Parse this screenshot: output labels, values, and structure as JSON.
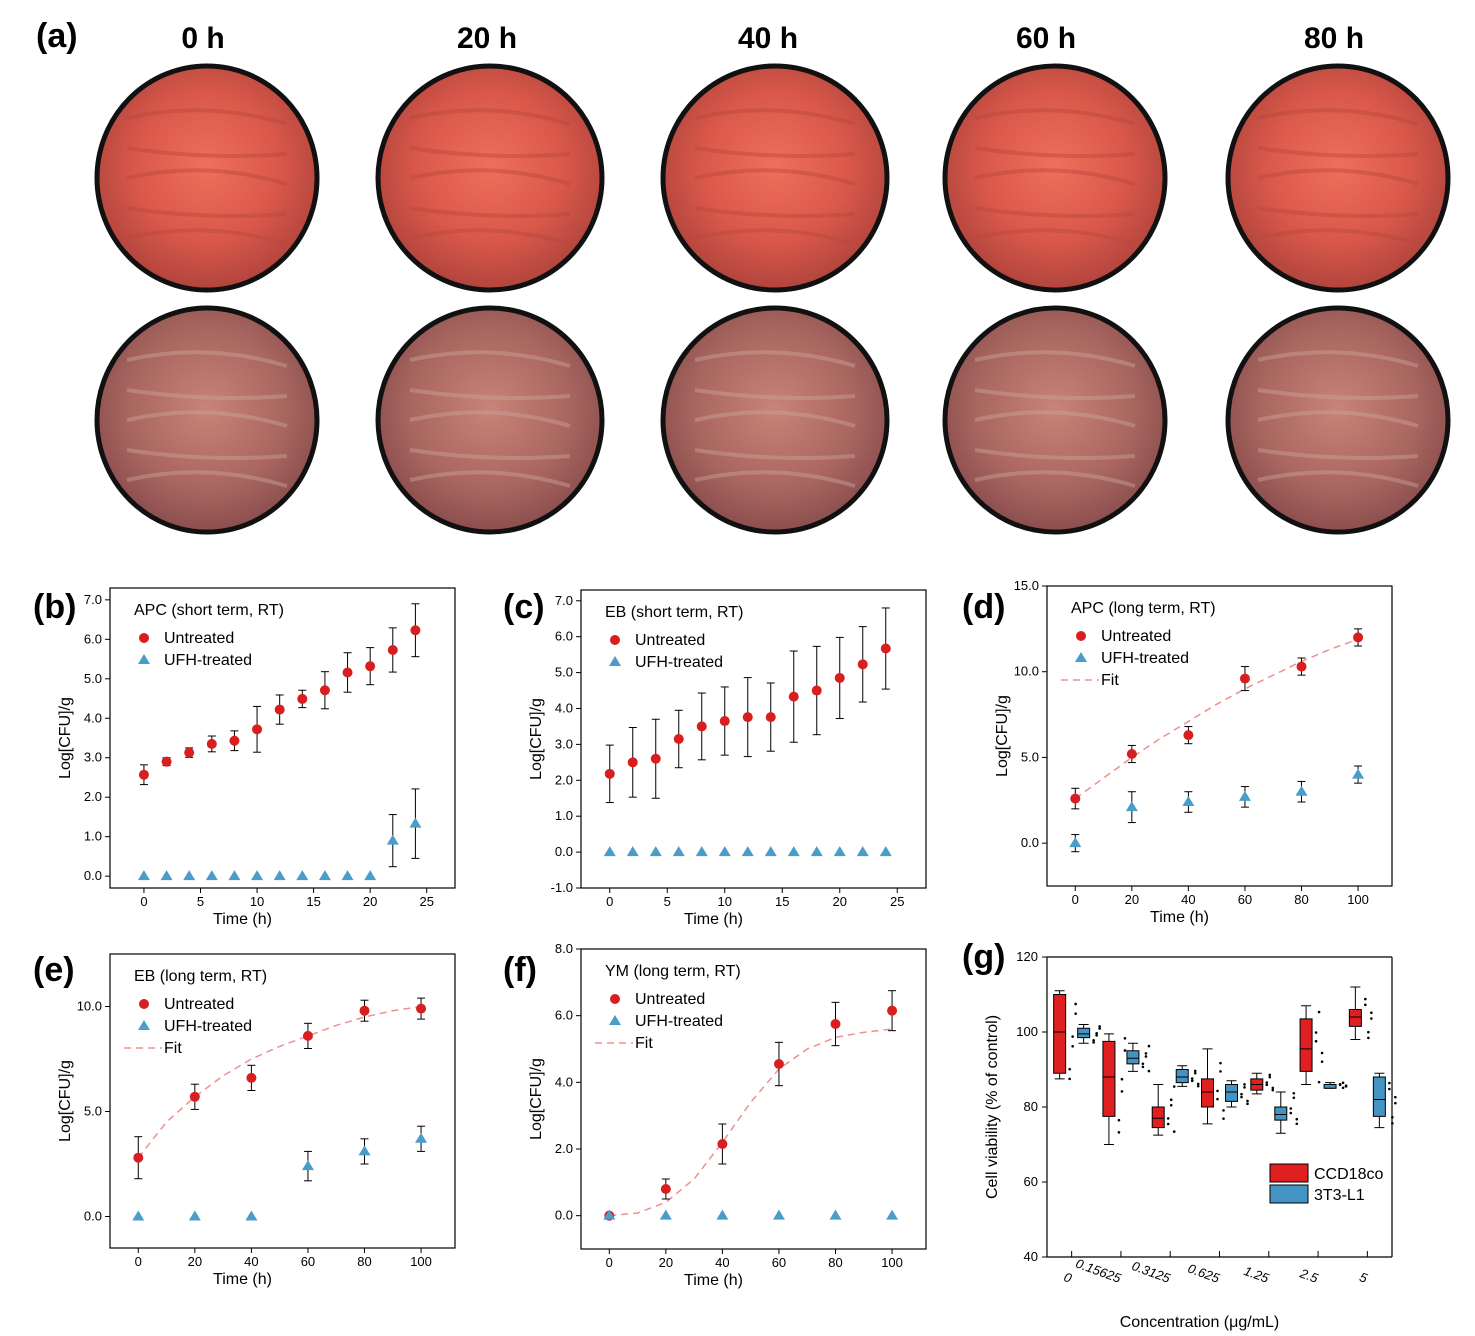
{
  "panel_a": {
    "label": "(a)",
    "time_labels": [
      "0 h",
      "20 h",
      "40 h",
      "60 h",
      "80 h"
    ]
  },
  "colors": {
    "untreated": "#d81e1e",
    "ufh": "#4a9cc9",
    "fit": "#f08f8f",
    "box_ccd": "#e02020",
    "box_3t3": "#4393c3"
  },
  "chart_data": [
    {
      "id": "b",
      "label": "(b)",
      "type": "scatter",
      "title": "APC (short term, RT)",
      "xlabel": "Time (h)",
      "ylabel": "Log[CFU]/g",
      "xlim": [
        -3,
        27.5
      ],
      "ylim": [
        -0.3,
        7.3
      ],
      "xticks": [
        0,
        5,
        10,
        15,
        20,
        25
      ],
      "xtick_labels": [
        "0",
        "5",
        "10",
        "15",
        "20",
        "25"
      ],
      "yticks": [
        0,
        1,
        2,
        3,
        4,
        5,
        6,
        7
      ],
      "ytick_labels": [
        "0.0",
        "1.0",
        "2.0",
        "3.0",
        "4.0",
        "5.0",
        "6.0",
        "7.0"
      ],
      "legend": [
        "Untreated",
        "UFH-treated"
      ],
      "series": [
        {
          "name": "Untreated",
          "marker": "circle",
          "x": [
            0,
            2,
            4,
            6,
            8,
            10,
            12,
            14,
            16,
            18,
            20,
            22,
            24
          ],
          "y": [
            2.57,
            2.9,
            3.13,
            3.35,
            3.43,
            3.72,
            4.22,
            4.49,
            4.71,
            5.16,
            5.32,
            5.73,
            6.23
          ],
          "err": [
            0.25,
            0.1,
            0.12,
            0.2,
            0.25,
            0.58,
            0.37,
            0.22,
            0.47,
            0.5,
            0.47,
            0.56,
            0.67
          ]
        },
        {
          "name": "UFH-treated",
          "marker": "triangle",
          "x": [
            0,
            2,
            4,
            6,
            8,
            10,
            12,
            14,
            16,
            18,
            20,
            22,
            24
          ],
          "y": [
            0,
            0,
            0,
            0,
            0,
            0,
            0,
            0,
            0,
            0,
            0,
            0.9,
            1.33
          ],
          "err": [
            0,
            0,
            0,
            0,
            0,
            0,
            0,
            0,
            0,
            0,
            0,
            0.66,
            0.88
          ]
        }
      ]
    },
    {
      "id": "c",
      "label": "(c)",
      "type": "scatter",
      "title": "EB (short term, RT)",
      "xlabel": "Time (h)",
      "ylabel": "Log[CFU]/g",
      "xlim": [
        -2.5,
        27.5
      ],
      "ylim": [
        -1,
        7.3
      ],
      "xticks": [
        0,
        5,
        10,
        15,
        20,
        25
      ],
      "xtick_labels": [
        "0",
        "5",
        "10",
        "15",
        "20",
        "25"
      ],
      "yticks": [
        -1,
        0,
        1,
        2,
        3,
        4,
        5,
        6,
        7
      ],
      "ytick_labels": [
        "-1.0",
        "0.0",
        "1.0",
        "2.0",
        "3.0",
        "4.0",
        "5.0",
        "6.0",
        "7.0"
      ],
      "legend": [
        "Untreated",
        "UFH-treated"
      ],
      "series": [
        {
          "name": "Untreated",
          "marker": "circle",
          "x": [
            0,
            2,
            4,
            6,
            8,
            10,
            12,
            14,
            16,
            18,
            20,
            22,
            24
          ],
          "y": [
            2.18,
            2.5,
            2.6,
            3.15,
            3.5,
            3.65,
            3.76,
            3.76,
            4.33,
            4.5,
            4.85,
            5.23,
            5.67
          ],
          "err": [
            0.8,
            0.97,
            1.1,
            0.8,
            0.93,
            0.95,
            1.1,
            0.95,
            1.27,
            1.23,
            1.13,
            1.05,
            1.13
          ]
        },
        {
          "name": "UFH-treated",
          "marker": "triangle",
          "x": [
            0,
            2,
            4,
            6,
            8,
            10,
            12,
            14,
            16,
            18,
            20,
            22,
            24
          ],
          "y": [
            0,
            0,
            0,
            0,
            0,
            0,
            0,
            0,
            0,
            0,
            0,
            0,
            0
          ],
          "err": [
            0,
            0,
            0,
            0,
            0,
            0,
            0,
            0,
            0,
            0,
            0,
            0,
            0
          ]
        }
      ]
    },
    {
      "id": "d",
      "label": "(d)",
      "type": "scatter",
      "title": "APC (long term, RT)",
      "xlabel": "Time (h)",
      "ylabel": "Log[CFU]/g",
      "xlim": [
        -10,
        112
      ],
      "ylim": [
        -2.5,
        15
      ],
      "xticks": [
        0,
        20,
        40,
        60,
        80,
        100
      ],
      "xtick_labels": [
        "0",
        "20",
        "40",
        "60",
        "80",
        "100"
      ],
      "yticks": [
        0,
        5,
        10,
        15
      ],
      "ytick_labels": [
        "0.0",
        "5.0",
        "10.0",
        "15.0"
      ],
      "legend": [
        "Untreated",
        "UFH-treated",
        "Fit"
      ],
      "series": [
        {
          "name": "Untreated",
          "marker": "circle",
          "x": [
            0,
            20,
            40,
            60,
            80,
            100
          ],
          "y": [
            2.6,
            5.2,
            6.3,
            9.6,
            10.3,
            12.0
          ],
          "err": [
            0.6,
            0.5,
            0.5,
            0.7,
            0.5,
            0.5
          ]
        },
        {
          "name": "UFH-treated",
          "marker": "triangle",
          "x": [
            0,
            20,
            40,
            60,
            80,
            100
          ],
          "y": [
            0,
            2.1,
            2.4,
            2.7,
            3.0,
            4.0
          ],
          "err": [
            0.5,
            0.9,
            0.6,
            0.6,
            0.6,
            0.5
          ]
        },
        {
          "name": "Fit",
          "line": "dashed",
          "x": [
            0,
            10,
            20,
            30,
            40,
            50,
            60,
            70,
            80,
            90,
            100
          ],
          "y": [
            2.6,
            3.8,
            5.0,
            6.1,
            7.1,
            8.1,
            9.0,
            9.8,
            10.6,
            11.3,
            11.9
          ]
        }
      ]
    },
    {
      "id": "e",
      "label": "(e)",
      "type": "scatter",
      "title": "EB (long term, RT)",
      "xlabel": "Time (h)",
      "ylabel": "Log[CFU]/g",
      "xlim": [
        -10,
        112
      ],
      "ylim": [
        -1.5,
        12.5
      ],
      "xticks": [
        0,
        20,
        40,
        60,
        80,
        100
      ],
      "xtick_labels": [
        "0",
        "20",
        "40",
        "60",
        "80",
        "100"
      ],
      "yticks": [
        0,
        5,
        10
      ],
      "ytick_labels": [
        "0.0",
        "5.0",
        "10.0"
      ],
      "legend": [
        "Untreated",
        "UFH-treated",
        "Fit"
      ],
      "series": [
        {
          "name": "Untreated",
          "marker": "circle",
          "x": [
            0,
            20,
            40,
            60,
            80,
            100
          ],
          "y": [
            2.8,
            5.7,
            6.6,
            8.6,
            9.8,
            9.9
          ],
          "err": [
            1.0,
            0.6,
            0.6,
            0.6,
            0.5,
            0.5
          ]
        },
        {
          "name": "UFH-treated",
          "marker": "triangle",
          "x": [
            0,
            20,
            40,
            60,
            80,
            100
          ],
          "y": [
            0,
            0,
            0,
            2.4,
            3.1,
            3.7
          ],
          "err": [
            0,
            0,
            0,
            0.7,
            0.6,
            0.6
          ]
        },
        {
          "name": "Fit",
          "line": "dashed",
          "x": [
            0,
            10,
            20,
            30,
            40,
            50,
            60,
            70,
            80,
            90,
            100
          ],
          "y": [
            2.8,
            4.5,
            5.7,
            6.7,
            7.5,
            8.1,
            8.6,
            9.1,
            9.5,
            9.8,
            10.0
          ]
        }
      ]
    },
    {
      "id": "f",
      "label": "(f)",
      "type": "scatter",
      "title": "YM (long term, RT)",
      "xlabel": "Time (h)",
      "ylabel": "Log[CFU]/g",
      "xlim": [
        -10,
        112
      ],
      "ylim": [
        -1,
        8
      ],
      "xticks": [
        0,
        20,
        40,
        60,
        80,
        100
      ],
      "xtick_labels": [
        "0",
        "20",
        "40",
        "60",
        "80",
        "100"
      ],
      "yticks": [
        0,
        2,
        4,
        6,
        8
      ],
      "ytick_labels": [
        "0.0",
        "2.0",
        "4.0",
        "6.0",
        "8.0"
      ],
      "legend": [
        "Untreated",
        "UFH-treated",
        "Fit"
      ],
      "series": [
        {
          "name": "Untreated",
          "marker": "circle",
          "x": [
            0,
            20,
            40,
            60,
            80,
            100
          ],
          "y": [
            0,
            0.8,
            2.15,
            4.55,
            5.75,
            6.15
          ],
          "err": [
            0,
            0.3,
            0.6,
            0.65,
            0.65,
            0.6
          ]
        },
        {
          "name": "UFH-treated",
          "marker": "triangle",
          "x": [
            0,
            20,
            40,
            60,
            80,
            100
          ],
          "y": [
            0,
            0,
            0,
            0,
            0,
            0
          ],
          "err": [
            0,
            0,
            0,
            0,
            0,
            0
          ]
        },
        {
          "name": "Fit",
          "line": "dashed",
          "x": [
            0,
            10,
            20,
            30,
            40,
            50,
            60,
            70,
            80,
            90,
            100
          ],
          "y": [
            0,
            0.08,
            0.4,
            1.1,
            2.2,
            3.4,
            4.4,
            5.0,
            5.35,
            5.5,
            5.6
          ]
        }
      ]
    },
    {
      "id": "g",
      "label": "(g)",
      "type": "box",
      "xlabel": "Concentration (μg/mL)",
      "ylabel": "Cell viability (% of control)",
      "ylim": [
        40,
        120
      ],
      "yticks": [
        40,
        60,
        80,
        100,
        120
      ],
      "ytick_labels": [
        "40",
        "60",
        "80",
        "100",
        "120"
      ],
      "categories": [
        "0",
        "0.15625",
        "0.3125",
        "0.625",
        "1.25",
        "2.5",
        "5"
      ],
      "legend": [
        "CCD18co",
        "3T3-L1"
      ],
      "series": [
        {
          "name": "CCD18co",
          "min": [
            87.5,
            70,
            72.5,
            75.5,
            83.5,
            86,
            98
          ],
          "q1": [
            89,
            77.5,
            74.5,
            80,
            84.5,
            89.5,
            101.5
          ],
          "median": [
            100,
            88,
            77,
            84,
            86,
            95.5,
            104
          ],
          "q3": [
            110,
            97.5,
            80,
            87.5,
            87.5,
            103.5,
            106
          ],
          "max": [
            111,
            99.5,
            86,
            95.5,
            89,
            107,
            112
          ]
        },
        {
          "name": "3T3-L1",
          "min": [
            97,
            89.5,
            85.5,
            80,
            73,
            85,
            74.5
          ],
          "q1": [
            98.5,
            91.5,
            86.5,
            81.5,
            76.5,
            85,
            77.5
          ],
          "median": [
            99.5,
            93,
            88,
            84,
            78,
            86,
            82
          ],
          "q3": [
            101,
            95,
            90,
            86,
            80,
            86,
            88
          ],
          "max": [
            102,
            97,
            91,
            87,
            84,
            86.5,
            89
          ]
        }
      ]
    }
  ]
}
